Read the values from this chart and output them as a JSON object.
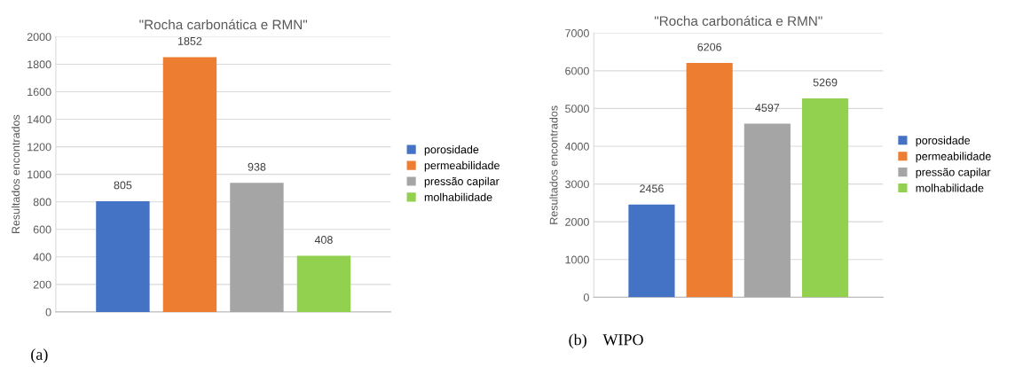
{
  "chart_data": [
    {
      "type": "bar",
      "title": "\"Rocha carbonática e RMN\"",
      "ylabel": "Resultados encontrados",
      "categories": [
        null
      ],
      "ylim": [
        0,
        2000
      ],
      "yticks": [
        0,
        200,
        400,
        600,
        800,
        1000,
        1200,
        1400,
        1600,
        1800,
        2000
      ],
      "grid": "y",
      "legend": "right",
      "data_labels": true,
      "series": [
        {
          "name": "porosidade",
          "color": "#4472c4",
          "values": [
            805
          ]
        },
        {
          "name": "permeabilidade",
          "color": "#ed7d31",
          "values": [
            1852
          ]
        },
        {
          "name": "pressão capilar",
          "color": "#a5a5a5",
          "values": [
            938
          ]
        },
        {
          "name": "molhabilidade",
          "color": "#92d050",
          "values": [
            408
          ]
        }
      ],
      "annotations": [
        "(a)"
      ]
    },
    {
      "type": "bar",
      "title": "\"Rocha carbonática e RMN\"",
      "ylabel": "Resultados encontrados",
      "categories": [
        null
      ],
      "ylim": [
        0,
        7000
      ],
      "yticks": [
        0,
        1000,
        2000,
        3000,
        4000,
        5000,
        6000,
        7000
      ],
      "grid": "y",
      "legend": "right",
      "data_labels": true,
      "series": [
        {
          "name": "porosidade",
          "color": "#4472c4",
          "values": [
            2456
          ]
        },
        {
          "name": "permeabilidade",
          "color": "#ed7d31",
          "values": [
            6206
          ]
        },
        {
          "name": "pressão capilar",
          "color": "#a5a5a5",
          "values": [
            4597
          ]
        },
        {
          "name": "molhabilidade",
          "color": "#92d050",
          "values": [
            5269
          ]
        }
      ],
      "annotations": [
        "(b)    WIPO"
      ]
    }
  ]
}
